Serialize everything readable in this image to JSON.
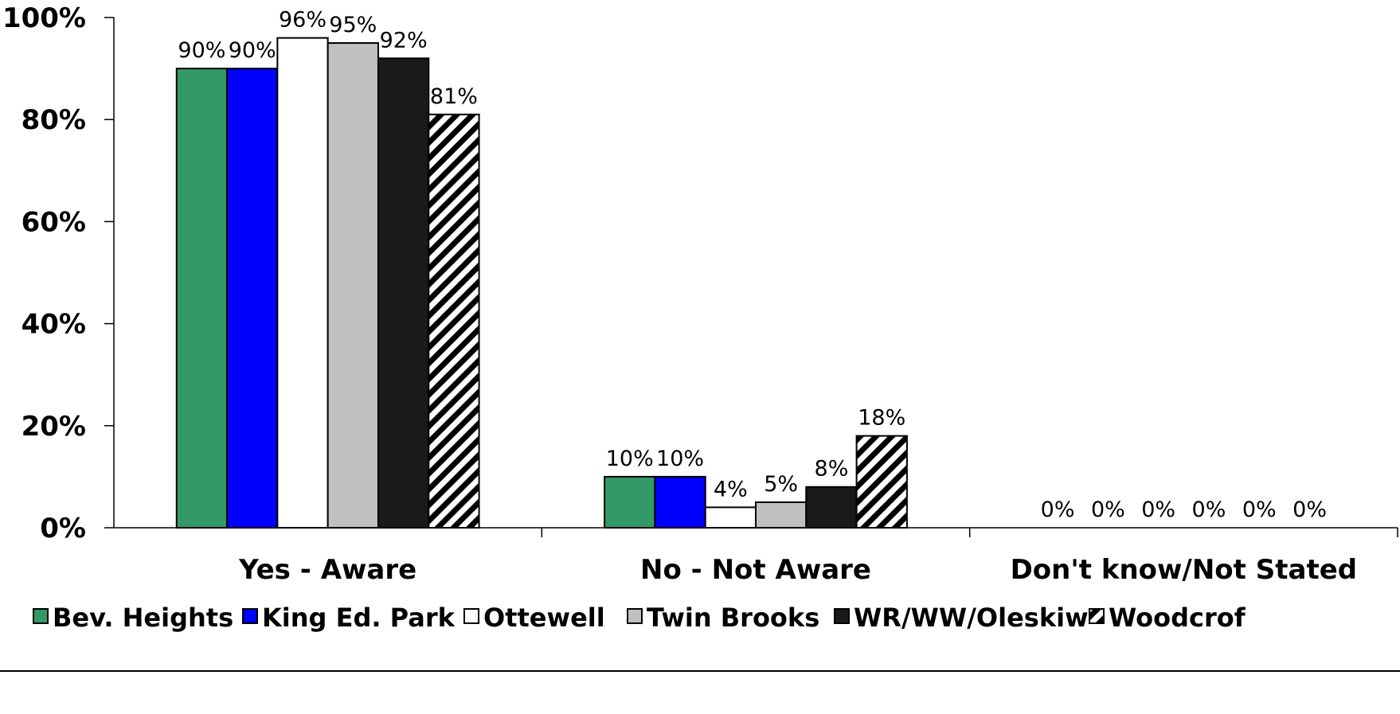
{
  "chart_data": {
    "type": "bar",
    "title": "",
    "xlabel": "",
    "ylabel": "",
    "ylim": [
      0,
      100
    ],
    "y_ticks": [
      0,
      20,
      40,
      60,
      80,
      100
    ],
    "y_tick_labels": [
      "0%",
      "20%",
      "40%",
      "60%",
      "80%",
      "100%"
    ],
    "grid": false,
    "legend_position": "bottom",
    "categories": [
      "Yes - Aware",
      "No - Not Aware",
      "Don't know/Not Stated"
    ],
    "series": [
      {
        "name": "Bev. Heights",
        "values": [
          90,
          10,
          0
        ],
        "labels": [
          "90%",
          "10%",
          "0%"
        ],
        "color": "#339966",
        "pattern": "solid"
      },
      {
        "name": "King Ed. Park",
        "values": [
          90,
          10,
          0
        ],
        "labels": [
          "90%",
          "10%",
          "0%"
        ],
        "color": "#0000ff",
        "pattern": "solid"
      },
      {
        "name": "Ottewell",
        "values": [
          96,
          4,
          0
        ],
        "labels": [
          "96%",
          "4%",
          "0%"
        ],
        "color": "#ffffff",
        "pattern": "solid"
      },
      {
        "name": "Twin Brooks",
        "values": [
          95,
          5,
          0
        ],
        "labels": [
          "95%",
          "5%",
          "0%"
        ],
        "color": "#c0c0c0",
        "pattern": "solid"
      },
      {
        "name": "WR/WW/Oleskiw",
        "values": [
          92,
          8,
          0
        ],
        "labels": [
          "92%",
          "8%",
          "0%"
        ],
        "color": "#1a1a1a",
        "pattern": "solid"
      },
      {
        "name": "Woodcroft",
        "legend_text": "Woodcrof",
        "values": [
          81,
          18,
          0
        ],
        "labels": [
          "81%",
          "18%",
          "0%"
        ],
        "color": "#000000",
        "pattern": "diagonal-hatch"
      }
    ]
  }
}
